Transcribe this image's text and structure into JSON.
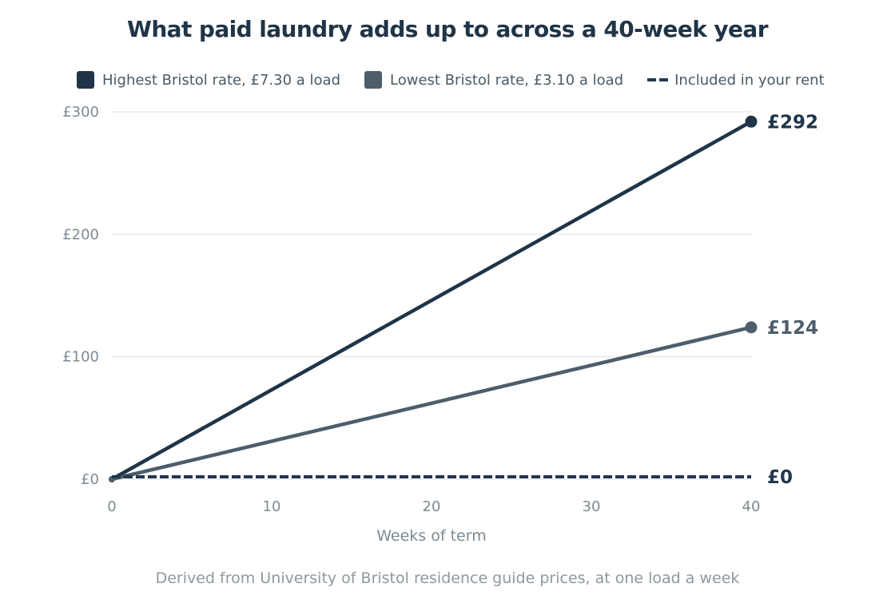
{
  "chart_data": {
    "type": "line",
    "title": "What paid laundry adds up to across a 40-week year",
    "xlabel": "Weeks of term",
    "ylabel": "",
    "xlim": [
      0,
      40
    ],
    "ylim": [
      0,
      300
    ],
    "x_ticks": [
      {
        "value": 0,
        "label": "0"
      },
      {
        "value": 10,
        "label": "10"
      },
      {
        "value": 20,
        "label": "20"
      },
      {
        "value": 30,
        "label": "30"
      },
      {
        "value": 40,
        "label": "40"
      }
    ],
    "y_ticks": [
      {
        "value": 0,
        "label": "£0"
      },
      {
        "value": 100,
        "label": "£100"
      },
      {
        "value": 200,
        "label": "£200"
      },
      {
        "value": 300,
        "label": "£300"
      }
    ],
    "grid": "horizontal",
    "legend_position": "top",
    "series": [
      {
        "name": "Highest Bristol rate, £7.30 a load",
        "color": "#1f3447",
        "style": "solid",
        "x": [
          0,
          40
        ],
        "y": [
          0,
          292
        ],
        "end_label": "£292"
      },
      {
        "name": "Lowest Bristol rate, £3.10 a load",
        "color": "#4d5d6b",
        "style": "solid",
        "x": [
          0,
          40
        ],
        "y": [
          0,
          124
        ],
        "end_label": "£124"
      },
      {
        "name": "Included in your rent",
        "color": "#22384d",
        "style": "dashed",
        "x": [
          0,
          40
        ],
        "y": [
          0,
          0
        ],
        "end_label": "£0"
      }
    ],
    "note": "Derived from University of Bristol residence guide prices, at one load a week"
  }
}
